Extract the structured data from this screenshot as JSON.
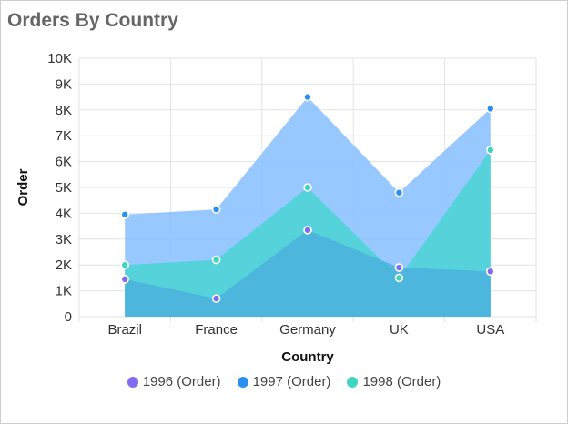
{
  "title": "Orders By Country",
  "chart_data": {
    "type": "area",
    "title": "Orders By Country",
    "xlabel": "Country",
    "ylabel": "Order",
    "categories": [
      "Brazil",
      "France",
      "Germany",
      "UK",
      "USA"
    ],
    "ylim": [
      0,
      10000
    ],
    "yticks": [
      {
        "value": 0,
        "label": "0"
      },
      {
        "value": 1000,
        "label": "1K"
      },
      {
        "value": 2000,
        "label": "2K"
      },
      {
        "value": 3000,
        "label": "3K"
      },
      {
        "value": 4000,
        "label": "4K"
      },
      {
        "value": 5000,
        "label": "5K"
      },
      {
        "value": 6000,
        "label": "6K"
      },
      {
        "value": 7000,
        "label": "7K"
      },
      {
        "value": 8000,
        "label": "8K"
      },
      {
        "value": 9000,
        "label": "9K"
      },
      {
        "value": 10000,
        "label": "10K"
      }
    ],
    "grid": true,
    "legend_position": "bottom",
    "series": [
      {
        "name": "1997 (Order)",
        "color": "#8cc2ff",
        "marker": "#2a8ff0",
        "values": [
          3950,
          4150,
          8500,
          4800,
          8050
        ]
      },
      {
        "name": "1998 (Order)",
        "color": "#4fd4d6",
        "marker": "#3ed6c0",
        "values": [
          2000,
          2200,
          5000,
          1500,
          6450
        ]
      },
      {
        "name": "1996 (Order)",
        "color": "#4bb3dd",
        "marker": "#7f6cf0",
        "values": [
          1450,
          700,
          3350,
          1900,
          1750
        ]
      }
    ],
    "legend": [
      {
        "name": "1996 (Order)",
        "color": "#7f6cf0"
      },
      {
        "name": "1997 (Order)",
        "color": "#2a8ff0"
      },
      {
        "name": "1998 (Order)",
        "color": "#3ed6c0"
      }
    ]
  }
}
